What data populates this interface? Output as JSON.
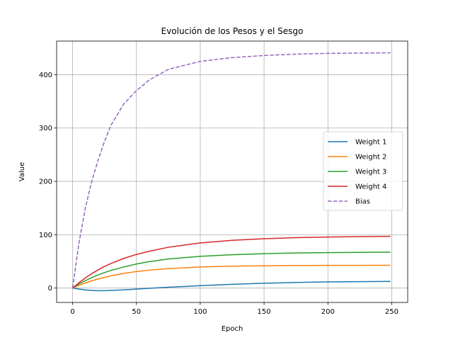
{
  "chart_data": {
    "type": "line",
    "title": "Evolución de los Pesos y el Sesgo",
    "xlabel": "Epoch",
    "ylabel": "Value",
    "xlim": [
      -12.5,
      262.5
    ],
    "ylim": [
      -27,
      463
    ],
    "xticks": [
      0,
      50,
      100,
      150,
      200,
      250
    ],
    "yticks": [
      0,
      100,
      200,
      300,
      400
    ],
    "grid": true,
    "legend_position": "center-right",
    "x": [
      0,
      5,
      10,
      15,
      20,
      25,
      30,
      40,
      50,
      60,
      75,
      100,
      125,
      150,
      175,
      200,
      225,
      249
    ],
    "series": [
      {
        "name": "Weight 1",
        "color": "#1f77b4",
        "dash": false,
        "values": [
          0,
          -2,
          -3.5,
          -4.5,
          -5,
          -5,
          -4.5,
          -3.5,
          -2,
          -0.5,
          1.5,
          4.5,
          7,
          9,
          10.5,
          11.5,
          12,
          12.5
        ]
      },
      {
        "name": "Weight 2",
        "color": "#ff7f0e",
        "dash": false,
        "values": [
          0,
          5,
          9.5,
          13.5,
          17,
          20,
          23,
          27.5,
          31,
          33.5,
          36.5,
          39.5,
          41,
          41.8,
          42.2,
          42.5,
          42.6,
          42.7
        ]
      },
      {
        "name": "Weight 3",
        "color": "#2ca02c",
        "dash": false,
        "values": [
          0,
          7.5,
          14,
          19.5,
          24.5,
          29,
          33,
          39.5,
          45,
          49.5,
          54.5,
          59.5,
          62.5,
          64.5,
          65.8,
          66.5,
          67,
          67.3
        ]
      },
      {
        "name": "Weight 4",
        "color": "#d62728",
        "dash": false,
        "values": [
          0,
          10,
          19,
          27,
          34,
          40.5,
          46,
          55.5,
          63,
          69,
          76.5,
          84.5,
          89.5,
          92.5,
          94.5,
          95.7,
          96.5,
          97
        ]
      },
      {
        "name": "Bias",
        "color": "#9467bd",
        "dash": true,
        "values": [
          0,
          85,
          150,
          200,
          240,
          275,
          305,
          345,
          370,
          390,
          410,
          425,
          432,
          436,
          438.5,
          440,
          440.5,
          441
        ]
      }
    ]
  }
}
